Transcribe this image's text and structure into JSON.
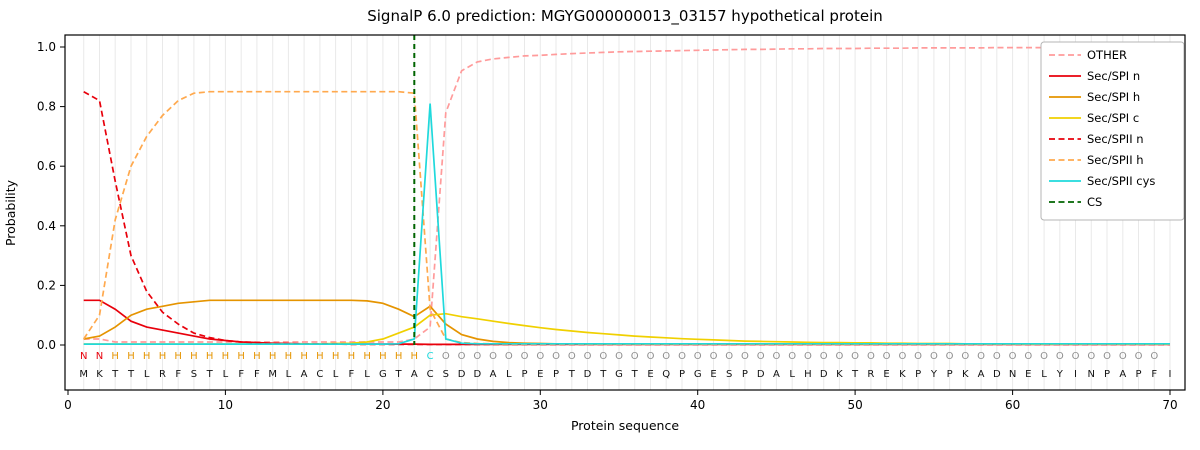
{
  "chart_data": {
    "type": "line",
    "title": "SignalP 6.0 prediction: MGYG000000013_03157 hypothetical protein",
    "xlabel": "Protein sequence",
    "ylabel": "Probability",
    "xlim": [
      0,
      70
    ],
    "ylim": [
      0.0,
      1.0
    ],
    "x_ticks": [
      0,
      10,
      20,
      30,
      40,
      50,
      60,
      70
    ],
    "y_ticks": [
      0.0,
      0.2,
      0.4,
      0.6,
      0.8,
      1.0
    ],
    "grid": "vertical-lines-at-each-residue",
    "legend_position": "upper-right",
    "sequence": "MKTTLRFSTLFFMLACLFLGTACSDDALPEPTDTGTEQPGESPDALHDKTREKPYPKADNELYINPAPFI",
    "annotation": "NNHHHHHHHHHHHHHHHHHHHHCOOOOOOOOOOOOOOOOOOOOOOOOOOOOOOOOOOOOOOOOOOOOOO",
    "annotation_colors": {
      "N": "#e8000b",
      "H": "#e59400",
      "C": "#1fd9dc",
      "O": "#909090"
    },
    "series": [
      {
        "name": "OTHER",
        "color": "#ff9b9b",
        "dash": "dashed",
        "values": [
          0.02,
          0.02,
          0.01,
          0.01,
          0.01,
          0.01,
          0.01,
          0.01,
          0.01,
          0.01,
          0.01,
          0.01,
          0.01,
          0.01,
          0.01,
          0.01,
          0.01,
          0.01,
          0.01,
          0.01,
          0.01,
          0.02,
          0.06,
          0.78,
          0.92,
          0.95,
          0.96,
          0.965,
          0.97,
          0.972,
          0.975,
          0.978,
          0.98,
          0.982,
          0.984,
          0.985,
          0.986,
          0.987,
          0.988,
          0.989,
          0.99,
          0.991,
          0.992,
          0.992,
          0.993,
          0.994,
          0.994,
          0.995,
          0.995,
          0.995,
          0.996,
          0.996,
          0.996,
          0.997,
          0.997,
          0.997,
          0.997,
          0.997,
          0.998,
          0.998,
          0.998,
          0.998,
          0.998,
          0.998,
          0.999,
          0.999,
          0.999,
          0.999,
          0.999,
          0.999
        ]
      },
      {
        "name": "Sec/SPI n",
        "color": "#e8000b",
        "dash": "solid",
        "values": [
          0.15,
          0.15,
          0.12,
          0.08,
          0.06,
          0.05,
          0.04,
          0.03,
          0.02,
          0.015,
          0.01,
          0.008,
          0.006,
          0.005,
          0.004,
          0.004,
          0.003,
          0.003,
          0.003,
          0.003,
          0.003,
          0.003,
          0.002,
          0.002,
          0.002,
          0.002,
          0.002,
          0.002,
          0.002,
          0.002,
          0.002,
          0.002,
          0.002,
          0.002,
          0.002,
          0.002,
          0.002,
          0.002,
          0.002,
          0.002,
          0.002,
          0.002,
          0.002,
          0.002,
          0.002,
          0.002,
          0.002,
          0.002,
          0.002,
          0.002,
          0.002,
          0.002,
          0.002,
          0.002,
          0.002,
          0.002,
          0.002,
          0.002,
          0.002,
          0.002,
          0.002,
          0.002,
          0.002,
          0.002,
          0.002,
          0.002,
          0.002,
          0.002,
          0.002,
          0.002
        ]
      },
      {
        "name": "Sec/SPI h",
        "color": "#e59400",
        "dash": "solid",
        "values": [
          0.02,
          0.03,
          0.06,
          0.1,
          0.12,
          0.13,
          0.14,
          0.145,
          0.15,
          0.15,
          0.15,
          0.15,
          0.15,
          0.15,
          0.15,
          0.15,
          0.15,
          0.15,
          0.148,
          0.14,
          0.12,
          0.095,
          0.13,
          0.07,
          0.035,
          0.02,
          0.012,
          0.008,
          0.006,
          0.005,
          0.004,
          0.004,
          0.003,
          0.003,
          0.003,
          0.003,
          0.003,
          0.003,
          0.003,
          0.003,
          0.003,
          0.003,
          0.003,
          0.003,
          0.003,
          0.003,
          0.003,
          0.003,
          0.003,
          0.003,
          0.003,
          0.003,
          0.003,
          0.003,
          0.003,
          0.003,
          0.003,
          0.003,
          0.003,
          0.003,
          0.003,
          0.003,
          0.003,
          0.003,
          0.003,
          0.003,
          0.003,
          0.003,
          0.003,
          0.003
        ]
      },
      {
        "name": "Sec/SPI c",
        "color": "#f0d000",
        "dash": "solid",
        "values": [
          0.003,
          0.003,
          0.003,
          0.003,
          0.003,
          0.003,
          0.003,
          0.003,
          0.003,
          0.003,
          0.003,
          0.003,
          0.003,
          0.003,
          0.004,
          0.004,
          0.005,
          0.006,
          0.01,
          0.02,
          0.04,
          0.06,
          0.1,
          0.105,
          0.095,
          0.088,
          0.08,
          0.072,
          0.065,
          0.058,
          0.052,
          0.047,
          0.042,
          0.038,
          0.034,
          0.03,
          0.027,
          0.024,
          0.021,
          0.019,
          0.017,
          0.015,
          0.013,
          0.012,
          0.011,
          0.01,
          0.009,
          0.008,
          0.008,
          0.007,
          0.007,
          0.006,
          0.006,
          0.005,
          0.005,
          0.005,
          0.004,
          0.004,
          0.004,
          0.004,
          0.003,
          0.003,
          0.003,
          0.003,
          0.003,
          0.003,
          0.003,
          0.003,
          0.003,
          0.003
        ]
      },
      {
        "name": "Sec/SPII n",
        "color": "#e8000b",
        "dash": "dashed",
        "values": [
          0.85,
          0.82,
          0.55,
          0.3,
          0.18,
          0.11,
          0.07,
          0.04,
          0.025,
          0.015,
          0.01,
          0.007,
          0.005,
          0.004,
          0.003,
          0.003,
          0.003,
          0.002,
          0.002,
          0.002,
          0.002,
          0.002,
          0.002,
          0.002,
          0.002,
          0.002,
          0.002,
          0.002,
          0.002,
          0.002,
          0.002,
          0.002,
          0.002,
          0.002,
          0.002,
          0.002,
          0.002,
          0.002,
          0.002,
          0.002,
          0.002,
          0.002,
          0.002,
          0.002,
          0.002,
          0.002,
          0.002,
          0.002,
          0.002,
          0.002,
          0.002,
          0.002,
          0.002,
          0.002,
          0.002,
          0.002,
          0.002,
          0.002,
          0.002,
          0.002,
          0.002,
          0.002,
          0.002,
          0.002,
          0.002,
          0.002,
          0.002,
          0.002,
          0.002,
          0.002
        ]
      },
      {
        "name": "Sec/SPII h",
        "color": "#ffa94e",
        "dash": "dashed",
        "values": [
          0.02,
          0.1,
          0.42,
          0.6,
          0.7,
          0.77,
          0.82,
          0.845,
          0.85,
          0.85,
          0.85,
          0.85,
          0.85,
          0.85,
          0.85,
          0.85,
          0.85,
          0.85,
          0.85,
          0.85,
          0.85,
          0.845,
          0.12,
          0.02,
          0.008,
          0.005,
          0.004,
          0.003,
          0.003,
          0.003,
          0.003,
          0.003,
          0.003,
          0.003,
          0.003,
          0.003,
          0.003,
          0.003,
          0.003,
          0.003,
          0.003,
          0.003,
          0.003,
          0.003,
          0.003,
          0.003,
          0.003,
          0.003,
          0.003,
          0.003,
          0.003,
          0.003,
          0.003,
          0.003,
          0.003,
          0.003,
          0.003,
          0.003,
          0.003,
          0.003,
          0.003,
          0.003,
          0.003,
          0.003,
          0.003,
          0.003,
          0.003,
          0.003,
          0.003,
          0.003
        ]
      },
      {
        "name": "Sec/SPII cys",
        "color": "#1fd9dc",
        "dash": "solid",
        "values": [
          0.003,
          0.003,
          0.003,
          0.003,
          0.003,
          0.003,
          0.003,
          0.003,
          0.003,
          0.003,
          0.003,
          0.003,
          0.003,
          0.003,
          0.003,
          0.003,
          0.003,
          0.003,
          0.003,
          0.003,
          0.004,
          0.02,
          0.81,
          0.02,
          0.006,
          0.004,
          0.004,
          0.004,
          0.004,
          0.004,
          0.004,
          0.004,
          0.004,
          0.004,
          0.004,
          0.004,
          0.004,
          0.004,
          0.004,
          0.004,
          0.004,
          0.004,
          0.004,
          0.004,
          0.004,
          0.004,
          0.004,
          0.004,
          0.004,
          0.004,
          0.004,
          0.004,
          0.004,
          0.004,
          0.004,
          0.004,
          0.004,
          0.004,
          0.004,
          0.004,
          0.004,
          0.004,
          0.004,
          0.004,
          0.004,
          0.004,
          0.004,
          0.004,
          0.004,
          0.004
        ]
      },
      {
        "name": "CS",
        "color": "#006400",
        "dash": "dashed",
        "type": "vline",
        "x_position": 22
      }
    ]
  }
}
